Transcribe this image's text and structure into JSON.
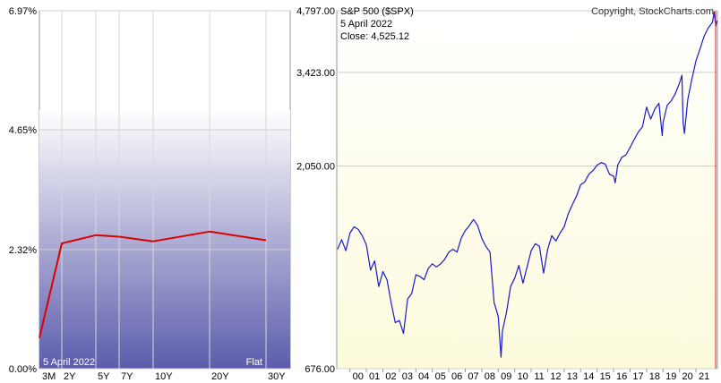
{
  "chart_data": [
    {
      "type": "line",
      "x_labels": [
        "3M",
        "2Y",
        "5Y",
        "7Y",
        "10Y",
        "20Y",
        "30Y"
      ],
      "values": [
        0.6,
        2.44,
        2.6,
        2.57,
        2.48,
        2.67,
        2.5
      ],
      "y_tick_labels": [
        "6.97%",
        "4.65%",
        "2.32%",
        "0.00%"
      ],
      "y_ticks": [
        6.97,
        4.65,
        2.32,
        0.0
      ],
      "ylim": [
        0,
        6.97
      ],
      "date_label": "5 April 2022",
      "shape_label": "Flat",
      "line_color": "#dd0000",
      "grid": true
    },
    {
      "type": "line",
      "title": "S&P 500 ($SPX)",
      "date_label": "5 April 2022",
      "close_label": "Close: 4,525.12",
      "copyright": "Copyright, StockCharts.com",
      "scale": "log",
      "ylim": [
        676,
        4797
      ],
      "y_tick_labels": [
        "4,797.00",
        "3,423.00",
        "2,050.00",
        "676.00"
      ],
      "y_ticks": [
        4797,
        3423,
        2050,
        676
      ],
      "x_tick_labels": [
        "00",
        "01",
        "02",
        "03",
        "04",
        "05",
        "06",
        "07",
        "08",
        "09",
        "10",
        "11",
        "12",
        "13",
        "14",
        "15",
        "16",
        "17",
        "18",
        "19",
        "20",
        "21"
      ],
      "x_ticks": [
        2000,
        2001,
        2002,
        2003,
        2004,
        2005,
        2006,
        2007,
        2008,
        2009,
        2010,
        2011,
        2012,
        2013,
        2014,
        2015,
        2016,
        2017,
        2018,
        2019,
        2020,
        2021
      ],
      "xlim": [
        1999.2,
        2022.3
      ],
      "line_color": "#1a1acc",
      "x": [
        1999.25,
        1999.5,
        1999.75,
        2000.0,
        2000.25,
        2000.5,
        2000.75,
        2001.0,
        2001.25,
        2001.5,
        2001.75,
        2002.0,
        2002.25,
        2002.5,
        2002.75,
        2003.0,
        2003.25,
        2003.5,
        2003.75,
        2004.0,
        2004.25,
        2004.5,
        2004.75,
        2005.0,
        2005.25,
        2005.5,
        2005.75,
        2006.0,
        2006.25,
        2006.5,
        2006.75,
        2007.0,
        2007.25,
        2007.5,
        2007.75,
        2008.0,
        2008.25,
        2008.5,
        2008.75,
        2009.0,
        2009.17,
        2009.25,
        2009.5,
        2009.75,
        2010.0,
        2010.25,
        2010.5,
        2010.75,
        2011.0,
        2011.25,
        2011.5,
        2011.75,
        2012.0,
        2012.25,
        2012.5,
        2012.75,
        2013.0,
        2013.25,
        2013.5,
        2013.75,
        2014.0,
        2014.25,
        2014.5,
        2014.75,
        2015.0,
        2015.25,
        2015.5,
        2015.75,
        2016.0,
        2016.1,
        2016.25,
        2016.5,
        2016.75,
        2017.0,
        2017.25,
        2017.5,
        2017.75,
        2018.0,
        2018.25,
        2018.5,
        2018.75,
        2018.95,
        2019.0,
        2019.25,
        2019.5,
        2019.75,
        2020.0,
        2020.15,
        2020.22,
        2020.3,
        2020.5,
        2020.75,
        2021.0,
        2021.25,
        2021.5,
        2021.75,
        2022.0,
        2022.1,
        2022.2,
        2022.27
      ],
      "y": [
        1300,
        1370,
        1290,
        1420,
        1470,
        1450,
        1400,
        1330,
        1160,
        1220,
        1060,
        1150,
        1100,
        970,
        870,
        880,
        820,
        990,
        1020,
        1130,
        1120,
        1100,
        1170,
        1200,
        1180,
        1200,
        1230,
        1280,
        1300,
        1280,
        1380,
        1440,
        1480,
        1530,
        1480,
        1380,
        1320,
        1280,
        970,
        900,
        720,
        830,
        920,
        1060,
        1110,
        1190,
        1080,
        1180,
        1290,
        1340,
        1320,
        1140,
        1300,
        1400,
        1360,
        1420,
        1470,
        1580,
        1660,
        1740,
        1850,
        1880,
        1960,
        2000,
        2060,
        2090,
        2070,
        1960,
        1940,
        1870,
        2060,
        2150,
        2180,
        2270,
        2370,
        2470,
        2540,
        2830,
        2650,
        2800,
        2890,
        2420,
        2600,
        2860,
        2930,
        3050,
        3230,
        3370,
        2600,
        2450,
        2950,
        3300,
        3650,
        3900,
        4180,
        4370,
        4500,
        4766,
        4400,
        4540
      ]
    }
  ]
}
